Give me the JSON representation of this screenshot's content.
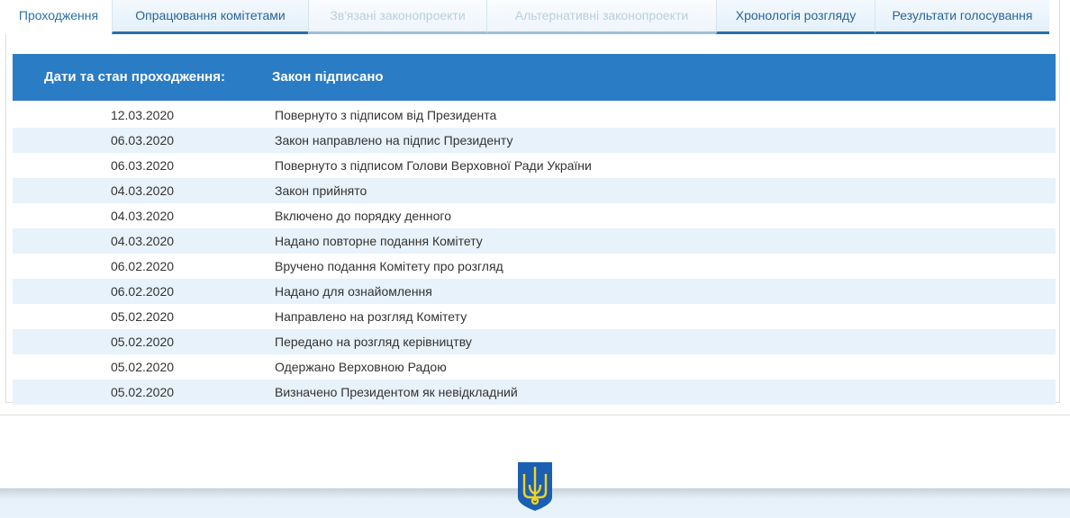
{
  "tabs": [
    {
      "label": "Проходження",
      "state": "active"
    },
    {
      "label": "Опрацювання комітетами",
      "state": "normal"
    },
    {
      "label": "Зв'язані законопроекти",
      "state": "disabled"
    },
    {
      "label": "Альтернативні законопроекти",
      "state": "disabled"
    },
    {
      "label": "Хронологія розгляду",
      "state": "normal"
    },
    {
      "label": "Результати голосування",
      "state": "normal"
    }
  ],
  "header": {
    "label": "Дати та стан проходження:",
    "status": "Закон підписано"
  },
  "rows": [
    {
      "date": "12.03.2020",
      "text": "Повернуто з підписом від Президента"
    },
    {
      "date": "06.03.2020",
      "text": "Закон направлено на підпис Президенту"
    },
    {
      "date": "06.03.2020",
      "text": "Повернуто з підписом Голови Верховної Ради України"
    },
    {
      "date": "04.03.2020",
      "text": "Закон прийнято"
    },
    {
      "date": "04.03.2020",
      "text": "Включено до порядку денного"
    },
    {
      "date": "04.03.2020",
      "text": "Надано повторне подання Комітету"
    },
    {
      "date": "06.02.2020",
      "text": "Вручено подання Комітету про розгляд"
    },
    {
      "date": "06.02.2020",
      "text": "Надано для ознайомлення"
    },
    {
      "date": "05.02.2020",
      "text": "Направлено на розгляд Комітету"
    },
    {
      "date": "05.02.2020",
      "text": "Передано на розгляд керівництву"
    },
    {
      "date": "05.02.2020",
      "text": "Одержано Верховною Радою"
    },
    {
      "date": "05.02.2020",
      "text": "Визначено Президентом як невідкладний"
    }
  ],
  "colors": {
    "accent": "#2a7cc4",
    "row_alt": "#e8f2fb",
    "emblem_blue": "#1a5fb4",
    "emblem_gold": "#f5d21c"
  },
  "footer": {
    "icon": "ukraine-trident-emblem"
  }
}
